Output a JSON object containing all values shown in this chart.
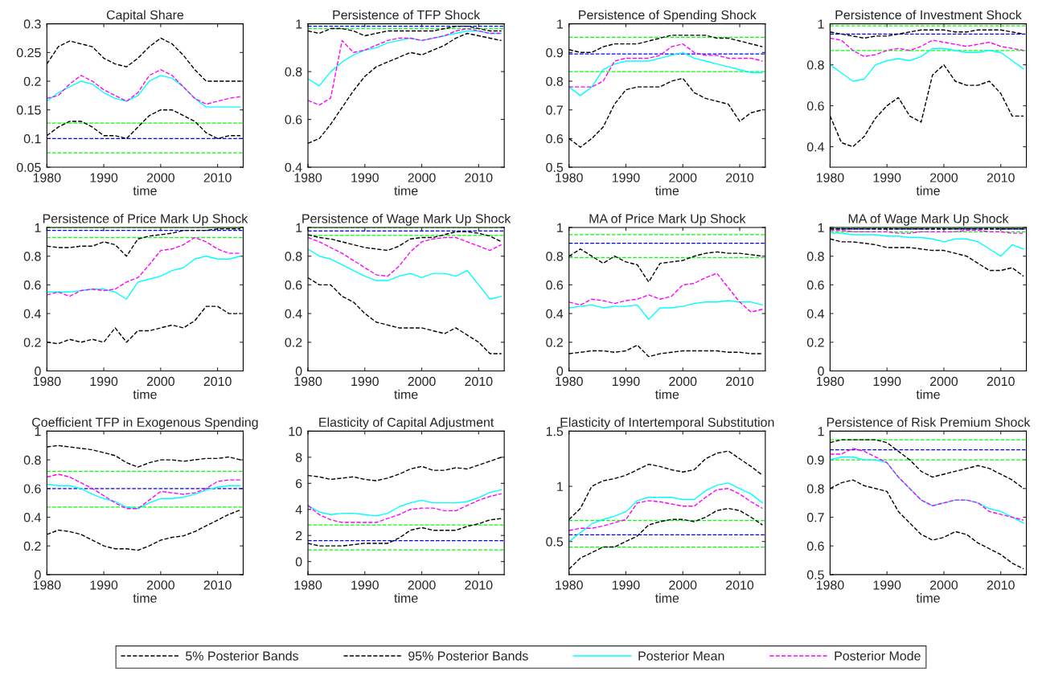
{
  "chart_data": [
    {
      "type": "line",
      "title": "Capital Share",
      "xlabel": "time",
      "x": [
        1980,
        1982,
        1984,
        1986,
        1988,
        1990,
        1992,
        1994,
        1996,
        1998,
        2000,
        2002,
        2004,
        2006,
        2008,
        2010,
        2012,
        2014
      ],
      "xlim": [
        1980,
        2014.5
      ],
      "xticks": [
        1980,
        1990,
        2000,
        2010
      ],
      "ylim": [
        0.05,
        0.3
      ],
      "yticks": [
        0.05,
        0.1,
        0.15,
        0.2,
        0.25,
        0.3
      ],
      "legend": "bottom",
      "series": [
        {
          "name": "5% Posterior Bands",
          "color": "#000000",
          "line_style": "dashed",
          "values": [
            0.105,
            0.12,
            0.13,
            0.13,
            0.12,
            0.105,
            0.105,
            0.1,
            0.12,
            0.14,
            0.15,
            0.15,
            0.14,
            0.13,
            0.11,
            0.1,
            0.105,
            0.105
          ]
        },
        {
          "name": "95% Posterior Bands",
          "color": "#000000",
          "line_style": "dashed",
          "values": [
            0.23,
            0.26,
            0.27,
            0.265,
            0.26,
            0.24,
            0.23,
            0.225,
            0.24,
            0.26,
            0.275,
            0.265,
            0.245,
            0.22,
            0.2,
            0.2,
            0.2,
            0.2
          ]
        },
        {
          "name": "Posterior Mean",
          "color": "#00ffff",
          "line_style": "solid",
          "values": [
            0.165,
            0.18,
            0.19,
            0.2,
            0.195,
            0.18,
            0.17,
            0.165,
            0.175,
            0.2,
            0.21,
            0.205,
            0.19,
            0.17,
            0.155,
            0.155,
            0.155,
            0.155
          ]
        },
        {
          "name": "Posterior Mode",
          "color": "#ff00ff",
          "line_style": "dashed",
          "values": [
            0.17,
            0.175,
            0.195,
            0.21,
            0.2,
            0.185,
            0.175,
            0.165,
            0.18,
            0.21,
            0.22,
            0.21,
            0.19,
            0.17,
            0.16,
            0.165,
            0.17,
            0.173
          ]
        }
      ],
      "ref_lines": [
        {
          "axis": "y",
          "value": 0.1,
          "color": "#0000ff",
          "line_style": "dashed"
        },
        {
          "axis": "y",
          "value": 0.127,
          "color": "#00ff00",
          "line_style": "dashed"
        },
        {
          "axis": "y",
          "value": 0.075,
          "color": "#00ff00",
          "line_style": "dashed"
        }
      ]
    },
    {
      "type": "line",
      "title": "Persistence of TFP Shock",
      "xlabel": "time",
      "x": [
        1980,
        1982,
        1984,
        1986,
        1988,
        1990,
        1992,
        1994,
        1996,
        1998,
        2000,
        2002,
        2004,
        2006,
        2008,
        2010,
        2012,
        2014
      ],
      "xlim": [
        1980,
        2014.5
      ],
      "xticks": [
        1980,
        1990,
        2000,
        2010
      ],
      "ylim": [
        0.4,
        1
      ],
      "yticks": [
        0.4,
        0.6,
        0.8,
        1
      ],
      "series": [
        {
          "color": "#000000",
          "line_style": "dashed",
          "values": [
            0.5,
            0.52,
            0.58,
            0.65,
            0.72,
            0.78,
            0.82,
            0.84,
            0.86,
            0.88,
            0.87,
            0.89,
            0.91,
            0.94,
            0.96,
            0.95,
            0.94,
            0.93
          ]
        },
        {
          "color": "#000000",
          "line_style": "dashed",
          "values": [
            0.97,
            0.96,
            0.98,
            0.98,
            0.97,
            0.95,
            0.96,
            0.97,
            0.97,
            0.97,
            0.97,
            0.97,
            0.98,
            0.99,
            0.99,
            0.98,
            0.97,
            0.97
          ]
        },
        {
          "color": "#00ffff",
          "line_style": "solid",
          "values": [
            0.77,
            0.74,
            0.8,
            0.84,
            0.87,
            0.89,
            0.9,
            0.92,
            0.93,
            0.94,
            0.93,
            0.94,
            0.95,
            0.96,
            0.97,
            0.97,
            0.96,
            0.96
          ]
        },
        {
          "color": "#ff00ff",
          "line_style": "dashed",
          "values": [
            0.68,
            0.66,
            0.69,
            0.93,
            0.88,
            0.89,
            0.91,
            0.93,
            0.94,
            0.94,
            0.93,
            0.94,
            0.95,
            0.97,
            0.98,
            0.97,
            0.96,
            0.96
          ]
        }
      ],
      "ref_lines": [
        {
          "axis": "y",
          "value": 0.99,
          "color": "#0000ff",
          "line_style": "dashed"
        },
        {
          "axis": "y",
          "value": 1,
          "color": "#00ff00",
          "line_style": "dashed"
        },
        {
          "axis": "y",
          "value": 0.98,
          "color": "#00ff00",
          "line_style": "dashed"
        }
      ]
    },
    {
      "type": "line",
      "title": "Persistence of Spending Shock",
      "xlabel": "time",
      "x": [
        1980,
        1982,
        1984,
        1986,
        1988,
        1990,
        1992,
        1994,
        1996,
        1998,
        2000,
        2002,
        2004,
        2006,
        2008,
        2010,
        2012,
        2014
      ],
      "xlim": [
        1980,
        2014.5
      ],
      "xticks": [
        1980,
        1990,
        2000,
        2010
      ],
      "ylim": [
        0.5,
        1
      ],
      "yticks": [
        0.5,
        0.6,
        0.7,
        0.8,
        0.9,
        1
      ],
      "series": [
        {
          "color": "#000000",
          "line_style": "dashed",
          "values": [
            0.6,
            0.57,
            0.6,
            0.64,
            0.72,
            0.77,
            0.78,
            0.78,
            0.78,
            0.8,
            0.81,
            0.76,
            0.74,
            0.73,
            0.72,
            0.66,
            0.69,
            0.7
          ]
        },
        {
          "color": "#000000",
          "line_style": "dashed",
          "values": [
            0.91,
            0.9,
            0.9,
            0.92,
            0.93,
            0.93,
            0.93,
            0.94,
            0.95,
            0.96,
            0.96,
            0.96,
            0.96,
            0.95,
            0.95,
            0.94,
            0.93,
            0.92
          ]
        },
        {
          "color": "#00ffff",
          "line_style": "solid",
          "values": [
            0.78,
            0.75,
            0.78,
            0.84,
            0.86,
            0.87,
            0.87,
            0.87,
            0.88,
            0.89,
            0.9,
            0.88,
            0.87,
            0.86,
            0.85,
            0.84,
            0.83,
            0.83
          ]
        },
        {
          "color": "#ff00ff",
          "line_style": "dashed",
          "values": [
            0.78,
            0.78,
            0.78,
            0.8,
            0.87,
            0.88,
            0.88,
            0.88,
            0.89,
            0.92,
            0.93,
            0.9,
            0.89,
            0.89,
            0.88,
            0.88,
            0.88,
            0.87
          ]
        }
      ],
      "ref_lines": [
        {
          "axis": "y",
          "value": 0.895,
          "color": "#0000ff",
          "line_style": "dashed"
        },
        {
          "axis": "y",
          "value": 0.953,
          "color": "#00ff00",
          "line_style": "dashed"
        },
        {
          "axis": "y",
          "value": 0.833,
          "color": "#00ff00",
          "line_style": "dashed"
        }
      ]
    },
    {
      "type": "line",
      "title": "Persistence of Investment Shock",
      "xlabel": "time",
      "x": [
        1980,
        1982,
        1984,
        1986,
        1988,
        1990,
        1992,
        1994,
        1996,
        1998,
        2000,
        2002,
        2004,
        2006,
        2008,
        2010,
        2012,
        2014
      ],
      "xlim": [
        1980,
        2014.5
      ],
      "xticks": [
        1980,
        1990,
        2000,
        2010
      ],
      "ylim": [
        0.3,
        1
      ],
      "yticks": [
        0.4,
        0.6,
        0.8,
        1
      ],
      "series": [
        {
          "color": "#000000",
          "line_style": "dashed",
          "values": [
            0.55,
            0.42,
            0.4,
            0.45,
            0.54,
            0.6,
            0.64,
            0.55,
            0.52,
            0.75,
            0.8,
            0.72,
            0.7,
            0.7,
            0.72,
            0.66,
            0.55,
            0.55
          ]
        },
        {
          "color": "#000000",
          "line_style": "dashed",
          "values": [
            0.96,
            0.95,
            0.94,
            0.93,
            0.94,
            0.94,
            0.95,
            0.96,
            0.97,
            0.97,
            0.97,
            0.96,
            0.96,
            0.97,
            0.97,
            0.97,
            0.96,
            0.95
          ]
        },
        {
          "color": "#00ffff",
          "line_style": "solid",
          "values": [
            0.8,
            0.76,
            0.72,
            0.73,
            0.8,
            0.82,
            0.83,
            0.82,
            0.84,
            0.88,
            0.88,
            0.87,
            0.86,
            0.86,
            0.87,
            0.86,
            0.82,
            0.78
          ]
        },
        {
          "color": "#ff00ff",
          "line_style": "dashed",
          "values": [
            0.93,
            0.92,
            0.87,
            0.84,
            0.85,
            0.87,
            0.88,
            0.87,
            0.89,
            0.92,
            0.91,
            0.9,
            0.89,
            0.9,
            0.91,
            0.89,
            0.88,
            0.87
          ]
        }
      ],
      "ref_lines": [
        {
          "axis": "y",
          "value": 0.95,
          "color": "#0000ff",
          "line_style": "dashed"
        },
        {
          "axis": "y",
          "value": 0.99,
          "color": "#00ff00",
          "line_style": "dashed"
        },
        {
          "axis": "y",
          "value": 0.87,
          "color": "#00ff00",
          "line_style": "dashed"
        }
      ]
    },
    {
      "type": "line",
      "title": "Persistence of Price Mark Up Shock",
      "xlabel": "time",
      "x": [
        1980,
        1982,
        1984,
        1986,
        1988,
        1990,
        1992,
        1994,
        1996,
        1998,
        2000,
        2002,
        2004,
        2006,
        2008,
        2010,
        2012,
        2014
      ],
      "xlim": [
        1980,
        2014.5
      ],
      "xticks": [
        1980,
        1990,
        2000,
        2010
      ],
      "ylim": [
        0,
        1
      ],
      "yticks": [
        0,
        0.2,
        0.4,
        0.6,
        0.8,
        1
      ],
      "series": [
        {
          "color": "#000000",
          "line_style": "dashed",
          "values": [
            0.2,
            0.19,
            0.22,
            0.2,
            0.22,
            0.2,
            0.3,
            0.2,
            0.28,
            0.28,
            0.3,
            0.32,
            0.3,
            0.35,
            0.45,
            0.45,
            0.4,
            0.4
          ]
        },
        {
          "color": "#000000",
          "line_style": "dashed",
          "values": [
            0.87,
            0.86,
            0.86,
            0.87,
            0.87,
            0.9,
            0.88,
            0.8,
            0.92,
            0.94,
            0.95,
            0.96,
            0.98,
            0.98,
            0.98,
            0.99,
            0.99,
            0.99
          ]
        },
        {
          "color": "#00ffff",
          "line_style": "solid",
          "values": [
            0.55,
            0.55,
            0.55,
            0.56,
            0.57,
            0.57,
            0.55,
            0.5,
            0.62,
            0.64,
            0.66,
            0.7,
            0.72,
            0.78,
            0.8,
            0.78,
            0.78,
            0.8
          ]
        },
        {
          "color": "#ff00ff",
          "line_style": "dashed",
          "values": [
            0.53,
            0.55,
            0.52,
            0.56,
            0.57,
            0.56,
            0.57,
            0.62,
            0.65,
            0.74,
            0.84,
            0.85,
            0.88,
            0.93,
            0.9,
            0.85,
            0.82,
            0.82
          ]
        }
      ],
      "ref_lines": [
        {
          "axis": "y",
          "value": 0.98,
          "color": "#0000ff",
          "line_style": "dashed"
        },
        {
          "axis": "y",
          "value": 1,
          "color": "#00ff00",
          "line_style": "dashed"
        },
        {
          "axis": "y",
          "value": 0.93,
          "color": "#00ff00",
          "line_style": "dashed"
        }
      ]
    },
    {
      "type": "line",
      "title": "Persistence of Wage Mark Up Shock",
      "xlabel": "time",
      "x": [
        1980,
        1982,
        1984,
        1986,
        1988,
        1990,
        1992,
        1994,
        1996,
        1998,
        2000,
        2002,
        2004,
        2006,
        2008,
        2010,
        2012,
        2014
      ],
      "xlim": [
        1980,
        2014.5
      ],
      "xticks": [
        1980,
        1990,
        2000,
        2010
      ],
      "ylim": [
        0,
        1
      ],
      "yticks": [
        0,
        0.2,
        0.4,
        0.6,
        0.8,
        1
      ],
      "series": [
        {
          "color": "#000000",
          "line_style": "dashed",
          "values": [
            0.65,
            0.6,
            0.6,
            0.52,
            0.48,
            0.4,
            0.34,
            0.32,
            0.3,
            0.3,
            0.3,
            0.28,
            0.26,
            0.3,
            0.25,
            0.2,
            0.12,
            0.12
          ]
        },
        {
          "color": "#000000",
          "line_style": "dashed",
          "values": [
            0.95,
            0.93,
            0.92,
            0.9,
            0.88,
            0.86,
            0.85,
            0.84,
            0.87,
            0.92,
            0.93,
            0.93,
            0.95,
            0.97,
            0.97,
            0.96,
            0.94,
            0.9
          ]
        },
        {
          "color": "#00ffff",
          "line_style": "solid",
          "values": [
            0.85,
            0.8,
            0.78,
            0.74,
            0.7,
            0.66,
            0.63,
            0.63,
            0.66,
            0.68,
            0.65,
            0.68,
            0.68,
            0.66,
            0.7,
            0.6,
            0.5,
            0.52
          ]
        },
        {
          "color": "#ff00ff",
          "line_style": "dashed",
          "values": [
            0.93,
            0.9,
            0.86,
            0.82,
            0.77,
            0.72,
            0.67,
            0.66,
            0.73,
            0.83,
            0.9,
            0.92,
            0.93,
            0.93,
            0.9,
            0.87,
            0.84,
            0.88
          ]
        }
      ],
      "ref_lines": [
        {
          "axis": "y",
          "value": 0.975,
          "color": "#0000ff",
          "line_style": "dashed"
        },
        {
          "axis": "y",
          "value": 1,
          "color": "#00ff00",
          "line_style": "dashed"
        },
        {
          "axis": "y",
          "value": 0.945,
          "color": "#00ff00",
          "line_style": "dashed"
        }
      ]
    },
    {
      "type": "line",
      "title": "MA of Price Mark Up Shock",
      "xlabel": "time",
      "x": [
        1980,
        1982,
        1984,
        1986,
        1988,
        1990,
        1992,
        1994,
        1996,
        1998,
        2000,
        2002,
        2004,
        2006,
        2008,
        2010,
        2012,
        2014
      ],
      "xlim": [
        1980,
        2014.5
      ],
      "xticks": [
        1980,
        1990,
        2000,
        2010
      ],
      "ylim": [
        0,
        1
      ],
      "yticks": [
        0,
        0.2,
        0.4,
        0.6,
        0.8,
        1
      ],
      "series": [
        {
          "color": "#000000",
          "line_style": "dashed",
          "values": [
            0.12,
            0.13,
            0.14,
            0.14,
            0.13,
            0.14,
            0.18,
            0.1,
            0.12,
            0.13,
            0.14,
            0.14,
            0.14,
            0.14,
            0.13,
            0.13,
            0.12,
            0.12
          ]
        },
        {
          "color": "#000000",
          "line_style": "dashed",
          "values": [
            0.8,
            0.85,
            0.8,
            0.75,
            0.8,
            0.76,
            0.74,
            0.62,
            0.75,
            0.76,
            0.77,
            0.8,
            0.82,
            0.83,
            0.82,
            0.82,
            0.81,
            0.8
          ]
        },
        {
          "color": "#00ffff",
          "line_style": "solid",
          "values": [
            0.44,
            0.45,
            0.46,
            0.44,
            0.45,
            0.45,
            0.46,
            0.36,
            0.44,
            0.44,
            0.45,
            0.47,
            0.48,
            0.48,
            0.49,
            0.48,
            0.48,
            0.46
          ]
        },
        {
          "color": "#ff00ff",
          "line_style": "dashed",
          "values": [
            0.48,
            0.46,
            0.5,
            0.49,
            0.47,
            0.49,
            0.5,
            0.53,
            0.5,
            0.52,
            0.6,
            0.61,
            0.65,
            0.68,
            0.58,
            0.48,
            0.41,
            0.43
          ]
        }
      ],
      "ref_lines": [
        {
          "axis": "y",
          "value": 0.89,
          "color": "#0000ff",
          "line_style": "dashed"
        },
        {
          "axis": "y",
          "value": 0.95,
          "color": "#00ff00",
          "line_style": "dashed"
        },
        {
          "axis": "y",
          "value": 0.79,
          "color": "#00ff00",
          "line_style": "dashed"
        }
      ]
    },
    {
      "type": "line",
      "title": "MA of Wage Mark Up Shock",
      "xlabel": "time",
      "x": [
        1980,
        1982,
        1984,
        1986,
        1988,
        1990,
        1992,
        1994,
        1996,
        1998,
        2000,
        2002,
        2004,
        2006,
        2008,
        2010,
        2012,
        2014
      ],
      "xlim": [
        1980,
        2014.5
      ],
      "xticks": [
        1980,
        1990,
        2000,
        2010
      ],
      "ylim": [
        0,
        1
      ],
      "yticks": [
        0,
        0.2,
        0.4,
        0.6,
        0.8,
        1
      ],
      "series": [
        {
          "color": "#000000",
          "line_style": "dashed",
          "values": [
            0.92,
            0.9,
            0.9,
            0.89,
            0.88,
            0.86,
            0.86,
            0.86,
            0.85,
            0.84,
            0.84,
            0.82,
            0.8,
            0.75,
            0.7,
            0.7,
            0.72,
            0.66
          ]
        },
        {
          "color": "#000000",
          "line_style": "dashed",
          "values": [
            0.99,
            0.99,
            0.99,
            0.99,
            0.99,
            0.99,
            0.99,
            0.99,
            0.99,
            0.99,
            0.99,
            0.99,
            0.99,
            0.99,
            0.99,
            0.99,
            0.99,
            0.99
          ]
        },
        {
          "color": "#00ffff",
          "line_style": "solid",
          "values": [
            0.96,
            0.96,
            0.95,
            0.95,
            0.95,
            0.94,
            0.94,
            0.93,
            0.93,
            0.92,
            0.9,
            0.92,
            0.92,
            0.9,
            0.85,
            0.8,
            0.88,
            0.85
          ]
        },
        {
          "color": "#ff00ff",
          "line_style": "dashed",
          "values": [
            0.98,
            0.98,
            0.97,
            0.97,
            0.97,
            0.97,
            0.96,
            0.96,
            0.97,
            0.97,
            0.97,
            0.97,
            0.98,
            0.98,
            0.97,
            0.97,
            0.96,
            0.96
          ]
        }
      ],
      "ref_lines": [
        {
          "axis": "y",
          "value": 0.99,
          "color": "#0000ff",
          "line_style": "dashed"
        },
        {
          "axis": "y",
          "value": 1,
          "color": "#00ff00",
          "line_style": "dashed"
        },
        {
          "axis": "y",
          "value": 0.97,
          "color": "#00ff00",
          "line_style": "dashed"
        }
      ]
    },
    {
      "type": "line",
      "title": "Coefficient TFP in Exogenous Spending",
      "xlabel": "time",
      "x": [
        1980,
        1982,
        1984,
        1986,
        1988,
        1990,
        1992,
        1994,
        1996,
        1998,
        2000,
        2002,
        2004,
        2006,
        2008,
        2010,
        2012,
        2014
      ],
      "xlim": [
        1980,
        2014.5
      ],
      "xticks": [
        1980,
        1990,
        2000,
        2010
      ],
      "ylim": [
        0,
        1
      ],
      "yticks": [
        0,
        0.2,
        0.4,
        0.6,
        0.8,
        1
      ],
      "series": [
        {
          "color": "#000000",
          "line_style": "dashed",
          "values": [
            0.28,
            0.31,
            0.3,
            0.28,
            0.24,
            0.2,
            0.18,
            0.18,
            0.17,
            0.2,
            0.24,
            0.26,
            0.27,
            0.3,
            0.34,
            0.38,
            0.42,
            0.45
          ]
        },
        {
          "color": "#000000",
          "line_style": "dashed",
          "values": [
            0.89,
            0.9,
            0.89,
            0.88,
            0.87,
            0.85,
            0.83,
            0.78,
            0.75,
            0.78,
            0.8,
            0.8,
            0.79,
            0.8,
            0.81,
            0.81,
            0.82,
            0.8
          ]
        },
        {
          "color": "#00ffff",
          "line_style": "solid",
          "values": [
            0.63,
            0.62,
            0.62,
            0.6,
            0.56,
            0.53,
            0.51,
            0.47,
            0.46,
            0.5,
            0.53,
            0.53,
            0.54,
            0.56,
            0.59,
            0.61,
            0.62,
            0.62
          ]
        },
        {
          "color": "#ff00ff",
          "line_style": "dashed",
          "values": [
            0.68,
            0.7,
            0.68,
            0.64,
            0.6,
            0.55,
            0.5,
            0.46,
            0.46,
            0.52,
            0.58,
            0.57,
            0.56,
            0.57,
            0.6,
            0.65,
            0.66,
            0.66
          ]
        }
      ],
      "ref_lines": [
        {
          "axis": "y",
          "value": 0.6,
          "color": "#0000ff",
          "line_style": "dashed"
        },
        {
          "axis": "y",
          "value": 0.72,
          "color": "#00ff00",
          "line_style": "dashed"
        },
        {
          "axis": "y",
          "value": 0.47,
          "color": "#00ff00",
          "line_style": "dashed"
        }
      ]
    },
    {
      "type": "line",
      "title": "Elasticity of Capital Adjustment",
      "xlabel": "time",
      "x": [
        1980,
        1982,
        1984,
        1986,
        1988,
        1990,
        1992,
        1994,
        1996,
        1998,
        2000,
        2002,
        2004,
        2006,
        2008,
        2010,
        2012,
        2014
      ],
      "xlim": [
        1980,
        2014.5
      ],
      "xticks": [
        1980,
        1990,
        2000,
        2010
      ],
      "ylim": [
        -1,
        10
      ],
      "yticks": [
        0,
        2,
        4,
        6,
        8,
        10
      ],
      "series": [
        {
          "color": "#000000",
          "line_style": "dashed",
          "values": [
            1.4,
            1.2,
            1.2,
            1.2,
            1.3,
            1.4,
            1.4,
            1.4,
            1.8,
            2.4,
            2.6,
            2.4,
            2.4,
            2.4,
            2.7,
            2.9,
            3.2,
            3.3
          ]
        },
        {
          "color": "#000000",
          "line_style": "dashed",
          "values": [
            6.6,
            6.5,
            6.3,
            6.4,
            6.5,
            6.3,
            6.2,
            6.4,
            6.7,
            7.1,
            7.3,
            7.0,
            7.0,
            7.2,
            7.1,
            7.4,
            7.7,
            8.0
          ]
        },
        {
          "color": "#00ffff",
          "line_style": "solid",
          "values": [
            4.3,
            3.8,
            3.6,
            3.7,
            3.7,
            3.6,
            3.5,
            3.7,
            4.2,
            4.5,
            4.7,
            4.5,
            4.5,
            4.5,
            4.6,
            4.9,
            5.3,
            5.5
          ]
        },
        {
          "color": "#ff00ff",
          "line_style": "dashed",
          "values": [
            4.3,
            3.6,
            3.2,
            3.0,
            3.0,
            3.0,
            3.0,
            3.3,
            3.6,
            4.0,
            4.1,
            4.1,
            3.9,
            3.9,
            4.3,
            4.7,
            5.0,
            5.2
          ]
        }
      ],
      "ref_lines": [
        {
          "axis": "y",
          "value": 1.6,
          "color": "#0000ff",
          "line_style": "dashed"
        },
        {
          "axis": "y",
          "value": 2.8,
          "color": "#00ff00",
          "line_style": "dashed"
        },
        {
          "axis": "y",
          "value": 0.9,
          "color": "#00ff00",
          "line_style": "dashed"
        }
      ]
    },
    {
      "type": "line",
      "title": "Elasticity of Intertemporal Substitution",
      "xlabel": "time",
      "x": [
        1980,
        1982,
        1984,
        1986,
        1988,
        1990,
        1992,
        1994,
        1996,
        1998,
        2000,
        2002,
        2004,
        2006,
        2008,
        2010,
        2012,
        2014
      ],
      "xlim": [
        1980,
        2014.5
      ],
      "xticks": [
        1980,
        1990,
        2000,
        2010
      ],
      "ylim": [
        0.2,
        1.5
      ],
      "yticks": [
        0.5,
        1,
        1.5
      ],
      "series": [
        {
          "color": "#000000",
          "line_style": "dashed",
          "values": [
            0.25,
            0.35,
            0.4,
            0.45,
            0.45,
            0.5,
            0.55,
            0.65,
            0.68,
            0.7,
            0.7,
            0.68,
            0.72,
            0.78,
            0.8,
            0.78,
            0.72,
            0.65
          ]
        },
        {
          "color": "#000000",
          "line_style": "dashed",
          "values": [
            0.7,
            0.8,
            1.0,
            1.05,
            1.07,
            1.1,
            1.15,
            1.2,
            1.18,
            1.15,
            1.13,
            1.15,
            1.25,
            1.3,
            1.32,
            1.25,
            1.18,
            1.1
          ]
        },
        {
          "color": "#00ffff",
          "line_style": "solid",
          "values": [
            0.5,
            0.58,
            0.66,
            0.7,
            0.73,
            0.77,
            0.87,
            0.9,
            0.9,
            0.9,
            0.88,
            0.88,
            0.96,
            1.01,
            1.03,
            0.98,
            0.93,
            0.85
          ]
        },
        {
          "color": "#ff00ff",
          "line_style": "dashed",
          "values": [
            0.6,
            0.62,
            0.62,
            0.64,
            0.67,
            0.7,
            0.85,
            0.87,
            0.86,
            0.84,
            0.82,
            0.82,
            0.9,
            0.97,
            0.98,
            0.93,
            0.86,
            0.8
          ]
        }
      ],
      "ref_lines": [
        {
          "axis": "y",
          "value": 0.56,
          "color": "#0000ff",
          "line_style": "dashed"
        },
        {
          "axis": "y",
          "value": 0.69,
          "color": "#00ff00",
          "line_style": "dashed"
        },
        {
          "axis": "y",
          "value": 0.45,
          "color": "#00ff00",
          "line_style": "dashed"
        }
      ]
    },
    {
      "type": "line",
      "title": "Persistence of Risk Premium Shock",
      "xlabel": "time",
      "x": [
        1980,
        1982,
        1984,
        1986,
        1988,
        1990,
        1992,
        1994,
        1996,
        1998,
        2000,
        2002,
        2004,
        2006,
        2008,
        2010,
        2012,
        2014
      ],
      "xlim": [
        1980,
        2014.5
      ],
      "xticks": [
        1980,
        1990,
        2000,
        2010
      ],
      "ylim": [
        0.5,
        1
      ],
      "yticks": [
        0.5,
        0.6,
        0.7,
        0.8,
        0.9,
        1
      ],
      "series": [
        {
          "color": "#000000",
          "line_style": "dashed",
          "values": [
            0.8,
            0.82,
            0.83,
            0.81,
            0.8,
            0.79,
            0.72,
            0.68,
            0.64,
            0.62,
            0.63,
            0.65,
            0.64,
            0.61,
            0.59,
            0.57,
            0.54,
            0.52
          ]
        },
        {
          "color": "#000000",
          "line_style": "dashed",
          "values": [
            0.96,
            0.97,
            0.97,
            0.97,
            0.97,
            0.96,
            0.93,
            0.9,
            0.86,
            0.84,
            0.85,
            0.86,
            0.87,
            0.88,
            0.87,
            0.85,
            0.83,
            0.8
          ]
        },
        {
          "color": "#00ffff",
          "line_style": "solid",
          "values": [
            0.9,
            0.91,
            0.91,
            0.9,
            0.9,
            0.89,
            0.84,
            0.8,
            0.76,
            0.74,
            0.75,
            0.76,
            0.76,
            0.75,
            0.73,
            0.72,
            0.7,
            0.68
          ]
        },
        {
          "color": "#ff00ff",
          "line_style": "dashed",
          "values": [
            0.92,
            0.92,
            0.94,
            0.93,
            0.91,
            0.89,
            0.84,
            0.8,
            0.76,
            0.74,
            0.75,
            0.76,
            0.76,
            0.75,
            0.72,
            0.71,
            0.7,
            0.69
          ]
        }
      ],
      "ref_lines": [
        {
          "axis": "y",
          "value": 0.935,
          "color": "#0000ff",
          "line_style": "dashed"
        },
        {
          "axis": "y",
          "value": 0.97,
          "color": "#00ff00",
          "line_style": "dashed"
        },
        {
          "axis": "y",
          "value": 0.9,
          "color": "#00ff00",
          "line_style": "dashed"
        }
      ]
    }
  ]
}
